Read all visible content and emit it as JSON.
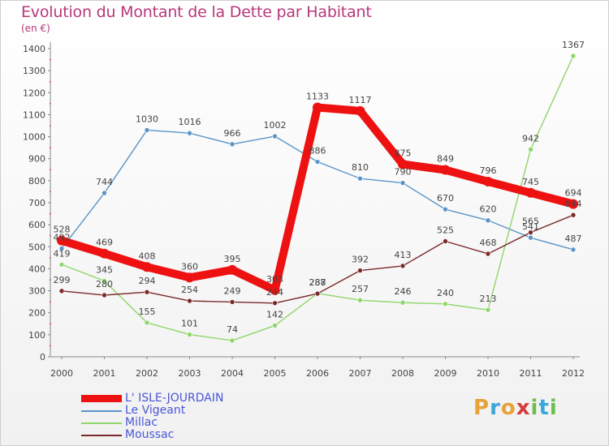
{
  "header": {
    "title": "Evolution du Montant de la Dette par Habitant",
    "unit": "(en €)"
  },
  "logo": {
    "letters": [
      "P",
      "r",
      "o",
      "x",
      "i",
      "t",
      "i"
    ],
    "colors": [
      "#e8a23a",
      "#3aa7d8",
      "#e8a23a",
      "#d83a3a",
      "#6bbf4a",
      "#3aa7d8",
      "#6bbf4a"
    ]
  },
  "chart_data": {
    "type": "line",
    "title": "Evolution du Montant de la Dette par Habitant",
    "ylabel": "(en €)",
    "xlabel": "",
    "x": [
      "2000",
      "2001",
      "2002",
      "2003",
      "2004",
      "2005",
      "2006",
      "2007",
      "2008",
      "2009",
      "2010",
      "2011",
      "2012"
    ],
    "ylim": [
      0,
      1400
    ],
    "yticks": [
      0,
      100,
      200,
      300,
      400,
      500,
      600,
      700,
      800,
      900,
      1000,
      1100,
      1200,
      1300,
      1400
    ],
    "grid": false,
    "legend_position": "bottom-left",
    "series": [
      {
        "name": "L' ISLE-JOURDAIN",
        "color": "#ee1111",
        "emphasis": true,
        "values": [
          528,
          469,
          408,
          360,
          395,
          303,
          1133,
          1117,
          875,
          849,
          796,
          745,
          694
        ],
        "labels": [
          "528",
          "469",
          "408",
          "360",
          "395",
          "303",
          "1133",
          "1117",
          "875",
          "849",
          "796",
          "745",
          "694"
        ]
      },
      {
        "name": "Le Vigeant",
        "color": "#5b94c8",
        "values": [
          492,
          744,
          1030,
          1016,
          966,
          1002,
          886,
          810,
          790,
          670,
          620,
          541,
          487
        ],
        "labels": [
          "492",
          "744",
          "1030",
          "1016",
          "966",
          "1002",
          "886",
          "810",
          "790",
          "670",
          "620",
          "541",
          "487"
        ]
      },
      {
        "name": "Millac",
        "color": "#8fd66a",
        "values": [
          419,
          345,
          155,
          101,
          74,
          142,
          288,
          257,
          246,
          240,
          213,
          942,
          1367
        ],
        "labels": [
          "419",
          "345",
          "155",
          "101",
          "74",
          "142",
          "288",
          "257",
          "246",
          "240",
          "213",
          "942",
          "1367"
        ]
      },
      {
        "name": "Moussac",
        "color": "#7a2a2a",
        "values": [
          299,
          280,
          294,
          254,
          249,
          244,
          287,
          392,
          413,
          525,
          468,
          565,
          644
        ],
        "labels": [
          "299",
          "280",
          "294",
          "254",
          "249",
          "244",
          "287",
          "392",
          "413",
          "525",
          "468",
          "565",
          "644"
        ]
      }
    ]
  }
}
